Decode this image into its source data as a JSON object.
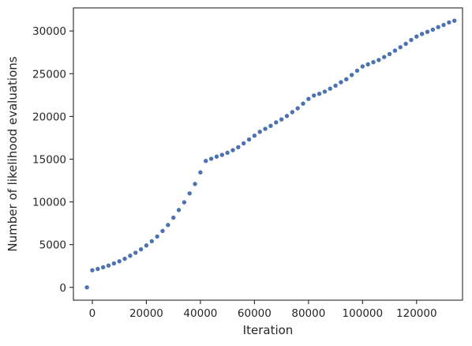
{
  "chart_data": {
    "type": "scatter",
    "title": "",
    "xlabel": "Iteration",
    "ylabel": "Number of likelihood evaluations",
    "xlim": [
      -7000,
      137000
    ],
    "ylim": [
      -1500,
      32700
    ],
    "xticks": [
      0,
      20000,
      40000,
      60000,
      80000,
      100000,
      120000
    ],
    "yticks": [
      0,
      5000,
      10000,
      15000,
      20000,
      25000,
      30000
    ],
    "grid": false,
    "marker_color": "#4c72b0",
    "series": [
      {
        "points": [
          [
            -2000,
            0
          ],
          [
            0,
            2000
          ],
          [
            2000,
            2150
          ],
          [
            4000,
            2350
          ],
          [
            6000,
            2550
          ],
          [
            8000,
            2800
          ],
          [
            10000,
            3050
          ],
          [
            12000,
            3350
          ],
          [
            14000,
            3700
          ],
          [
            16000,
            4050
          ],
          [
            18000,
            4450
          ],
          [
            20000,
            4900
          ],
          [
            22000,
            5400
          ],
          [
            24000,
            5950
          ],
          [
            26000,
            6600
          ],
          [
            28000,
            7300
          ],
          [
            30000,
            8150
          ],
          [
            32000,
            9050
          ],
          [
            34000,
            9950
          ],
          [
            36000,
            11000
          ],
          [
            38000,
            12100
          ],
          [
            40000,
            13450
          ],
          [
            42000,
            14800
          ],
          [
            44000,
            15050
          ],
          [
            46000,
            15300
          ],
          [
            48000,
            15500
          ],
          [
            50000,
            15750
          ],
          [
            52000,
            16050
          ],
          [
            54000,
            16400
          ],
          [
            56000,
            16850
          ],
          [
            58000,
            17300
          ],
          [
            60000,
            17750
          ],
          [
            62000,
            18200
          ],
          [
            64000,
            18550
          ],
          [
            66000,
            18900
          ],
          [
            68000,
            19300
          ],
          [
            70000,
            19650
          ],
          [
            72000,
            20050
          ],
          [
            74000,
            20500
          ],
          [
            76000,
            20950
          ],
          [
            78000,
            21500
          ],
          [
            80000,
            22050
          ],
          [
            82000,
            22450
          ],
          [
            84000,
            22650
          ],
          [
            86000,
            22900
          ],
          [
            88000,
            23250
          ],
          [
            90000,
            23600
          ],
          [
            92000,
            24000
          ],
          [
            94000,
            24350
          ],
          [
            96000,
            24850
          ],
          [
            98000,
            25350
          ],
          [
            100000,
            25850
          ],
          [
            102000,
            26100
          ],
          [
            104000,
            26350
          ],
          [
            106000,
            26600
          ],
          [
            108000,
            26950
          ],
          [
            110000,
            27300
          ],
          [
            112000,
            27700
          ],
          [
            114000,
            28100
          ],
          [
            116000,
            28500
          ],
          [
            118000,
            28950
          ],
          [
            120000,
            29350
          ],
          [
            122000,
            29650
          ],
          [
            124000,
            29900
          ],
          [
            126000,
            30150
          ],
          [
            128000,
            30450
          ],
          [
            130000,
            30700
          ],
          [
            132000,
            31000
          ],
          [
            134000,
            31200
          ]
        ]
      }
    ]
  }
}
